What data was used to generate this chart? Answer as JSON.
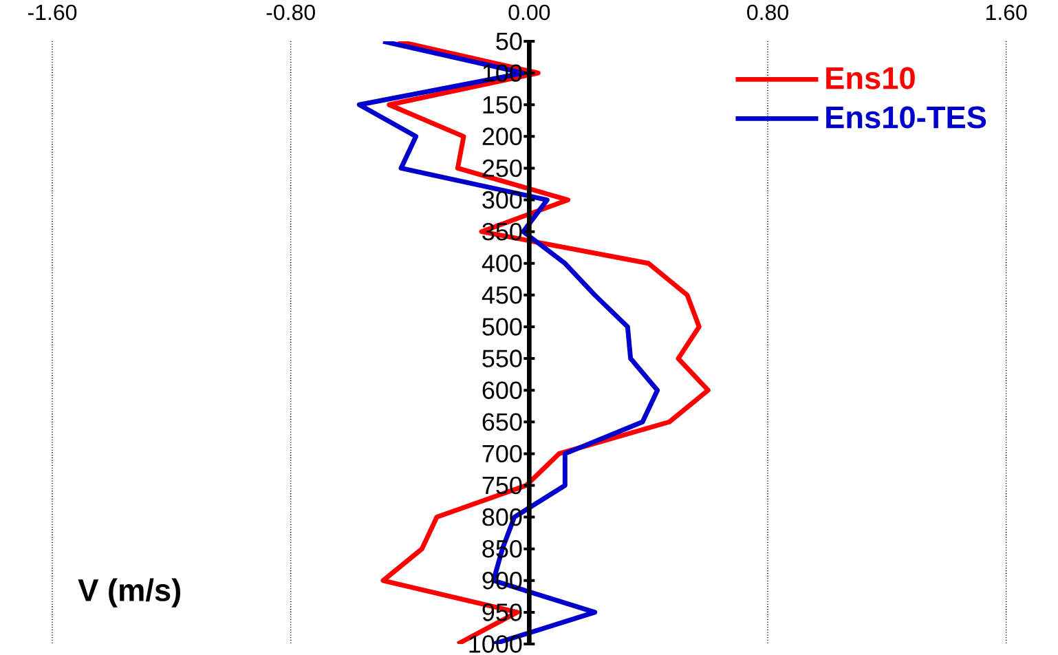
{
  "chart_data": {
    "type": "line",
    "xlabel": "V (m/s)",
    "series": [
      {
        "name": "Ens10",
        "color": "#ff0000",
        "x": [
          -0.44,
          0.03,
          -0.47,
          -0.22,
          -0.24,
          0.13,
          -0.16,
          0.4,
          0.53,
          0.57,
          0.5,
          0.6,
          0.47,
          0.1,
          -0.01,
          -0.31,
          -0.36,
          -0.49,
          -0.04,
          -0.24
        ],
        "values": [
          50,
          100,
          150,
          200,
          250,
          300,
          350,
          400,
          450,
          500,
          550,
          600,
          650,
          700,
          750,
          800,
          850,
          900,
          950,
          1000
        ]
      },
      {
        "name": "Ens10-TES",
        "color": "#0000cc",
        "x": [
          -0.49,
          -0.02,
          -0.57,
          -0.38,
          -0.43,
          0.06,
          -0.02,
          0.12,
          0.22,
          0.33,
          0.34,
          0.43,
          0.38,
          0.12,
          0.12,
          -0.05,
          -0.09,
          -0.12,
          0.22,
          -0.12
        ],
        "values": [
          50,
          100,
          150,
          200,
          250,
          300,
          350,
          400,
          450,
          500,
          550,
          600,
          650,
          700,
          750,
          800,
          850,
          900,
          950,
          1000
        ]
      }
    ],
    "xlim": [
      -1.6,
      1.6
    ],
    "xticks": [
      {
        "value": -1.6,
        "label": "-1.60"
      },
      {
        "value": -0.8,
        "label": "-0.80"
      },
      {
        "value": 0,
        "label": "0.00"
      },
      {
        "value": 0.8,
        "label": "0.80"
      },
      {
        "value": 1.6,
        "label": "1.60"
      }
    ],
    "ylim": [
      1000,
      50
    ],
    "yticks": [
      50,
      100,
      150,
      200,
      250,
      300,
      350,
      400,
      450,
      500,
      550,
      600,
      650,
      700,
      750,
      800,
      850,
      900,
      950,
      1000
    ],
    "grid": "x",
    "legend": "top right",
    "marker": "none",
    "line_style": "solid"
  }
}
